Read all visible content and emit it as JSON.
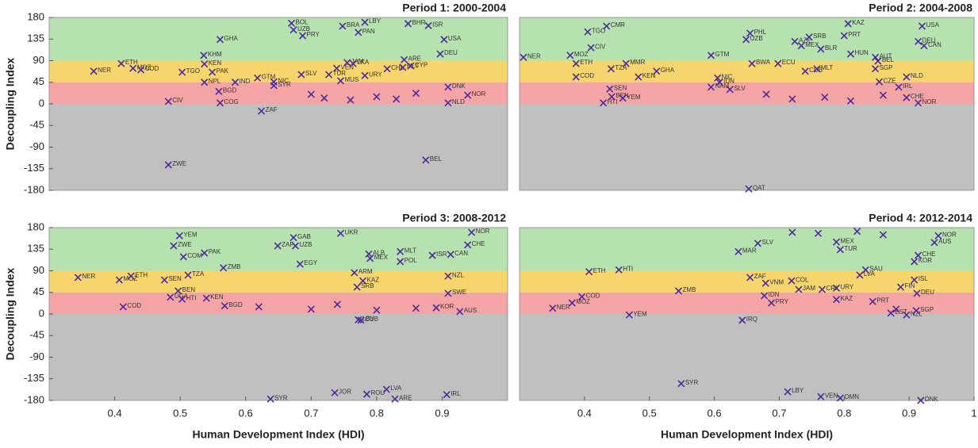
{
  "chart_data": [
    {
      "type": "scatter",
      "title": "Period 1: 2000-2004",
      "y_label": "Decoupling Index",
      "xlim": [
        0.3,
        1
      ],
      "ylim": [
        -180,
        180
      ],
      "yticks": [
        180,
        135,
        90,
        45,
        0,
        -45,
        -90,
        -135,
        -180
      ],
      "bands": [
        {
          "from": 90,
          "to": 180,
          "color": "#b5e2af"
        },
        {
          "from": 45,
          "to": 90,
          "color": "#f6d56c"
        },
        {
          "from": 0,
          "to": 45,
          "color": "#f4a4a4"
        },
        {
          "from": -180,
          "to": 0,
          "color": "#c0c0c0"
        }
      ],
      "series": [
        {
          "color": "#4b2a9c",
          "labels": [
            "ZWE",
            "BEL",
            "NER",
            "ETH",
            "MOZ",
            "COD",
            "TGO",
            "GHA",
            "KHM",
            "KEN",
            "PAK",
            "NPL",
            "IND",
            "BGD",
            "COG",
            "CIV",
            "GTM",
            "NIC",
            "SYR",
            "ZAF",
            "SLV",
            "TUR",
            "VEN",
            "JAM",
            "LKA",
            "MUS",
            "UZB",
            "PRY",
            "BOL",
            "BRA",
            "PAN",
            "LBY",
            "BHR",
            "ISR",
            "ARE",
            "MLT",
            "USA",
            "DEU",
            "CHL",
            "CYP",
            "URY",
            "DNK",
            "NOR",
            "NLD",
            null,
            null,
            null,
            null,
            null,
            null
          ],
          "x": [
            0.482,
            0.875,
            0.368,
            0.41,
            0.428,
            0.44,
            0.503,
            0.561,
            0.536,
            0.537,
            0.549,
            0.537,
            0.584,
            0.559,
            0.561,
            0.482,
            0.618,
            0.643,
            0.643,
            0.624,
            0.685,
            0.727,
            0.739,
            0.755,
            0.764,
            0.745,
            0.673,
            0.687,
            0.67,
            0.748,
            0.772,
            0.782,
            0.848,
            0.879,
            0.842,
            0.84,
            0.903,
            0.897,
            0.816,
            0.852,
            0.782,
            0.909,
            0.939,
            0.909,
            0.7,
            0.72,
            0.76,
            0.8,
            0.83,
            0.86
          ],
          "values": [
            -127,
            -117,
            68,
            84,
            74,
            71,
            66,
            134,
            101,
            83,
            66,
            45,
            45,
            26,
            2,
            5,
            54,
            46,
            38,
            -15,
            61,
            61,
            74,
            86,
            84,
            48,
            154,
            142,
            168,
            162,
            149,
            170,
            167,
            163,
            92,
            76,
            134,
            104,
            73,
            79,
            59,
            35,
            18,
            2,
            20,
            12,
            8,
            15,
            10,
            22
          ]
        }
      ]
    },
    {
      "type": "scatter",
      "title": "Period 2: 2004-2008",
      "xlim": [
        0.3,
        1
      ],
      "ylim": [
        -180,
        180
      ],
      "bands": [
        {
          "from": 90,
          "to": 180,
          "color": "#b5e2af"
        },
        {
          "from": 45,
          "to": 90,
          "color": "#f6d56c"
        },
        {
          "from": 0,
          "to": 45,
          "color": "#f4a4a4"
        },
        {
          "from": -180,
          "to": 0,
          "color": "#c0c0c0"
        }
      ],
      "series": [
        {
          "color": "#4b2a9c",
          "labels": [
            "QAT",
            "NER",
            "MOZ",
            "CIV",
            "TGO",
            "CMR",
            "ETH",
            "COD",
            "TZA",
            "MMR",
            "GHA",
            "KEN",
            "SEN",
            "BEN",
            "HTI",
            "YEM",
            "GTM",
            "PHL",
            "UZB",
            "BWA",
            "ECU",
            "NIC",
            "IDN",
            "SLV",
            "NAM",
            "CUB",
            "MLT",
            "AZE",
            "SRB",
            "MEX",
            "BLR",
            "PRT",
            "HUN",
            "SGP",
            "AUT",
            "BEL",
            "CZE",
            "NLD",
            "IRL",
            "CHE",
            "NOR",
            "USA",
            "DEU",
            "CAN",
            "KAZ",
            null,
            null,
            null,
            null,
            null
          ],
          "x": [
            0.653,
            0.306,
            0.378,
            0.41,
            0.405,
            0.434,
            0.387,
            0.387,
            0.441,
            0.464,
            0.511,
            0.483,
            0.439,
            0.442,
            0.429,
            0.459,
            0.595,
            0.655,
            0.649,
            0.658,
            0.698,
            0.605,
            0.608,
            0.624,
            0.595,
            0.74,
            0.758,
            0.724,
            0.746,
            0.734,
            0.764,
            0.8,
            0.81,
            0.848,
            0.848,
            0.852,
            0.854,
            0.896,
            0.884,
            0.896,
            0.914,
            0.92,
            0.914,
            0.923,
            0.806,
            0.68,
            0.72,
            0.77,
            0.81,
            0.86
          ],
          "values": [
            -177,
            97,
            101,
            117,
            150,
            162,
            84,
            56,
            73,
            84,
            68,
            56,
            31,
            15,
            2,
            12,
            101,
            147,
            134,
            84,
            84,
            54,
            45,
            30,
            35,
            68,
            73,
            130,
            139,
            121,
            114,
            142,
            104,
            73,
            97,
            89,
            46,
            56,
            35,
            13,
            2,
            162,
            130,
            121,
            167,
            20,
            10,
            14,
            6,
            18
          ]
        }
      ]
    },
    {
      "type": "scatter",
      "title": "Period 3: 2008-2012",
      "y_label": "Decoupling Index",
      "x_label": "Human Development Index (HDI)",
      "xlim": [
        0.3,
        1
      ],
      "ylim": [
        -180,
        180
      ],
      "yticks": [
        180,
        135,
        90,
        45,
        0,
        -45,
        -90,
        -135,
        -180
      ],
      "xticks": [
        0.4,
        0.5,
        0.6,
        0.7,
        0.8,
        0.9
      ],
      "bands": [
        {
          "from": 90,
          "to": 180,
          "color": "#b5e2af"
        },
        {
          "from": 45,
          "to": 90,
          "color": "#f6d56c"
        },
        {
          "from": 0,
          "to": 45,
          "color": "#f4a4a4"
        },
        {
          "from": -180,
          "to": 0,
          "color": "#c0c0c0"
        }
      ],
      "series": [
        {
          "color": "#4b2a9c",
          "labels": [
            "SYR",
            "JOR",
            "ROU",
            "LVA",
            "ARE",
            "IRL",
            "NER",
            "MOZ",
            "ETH",
            "YEM",
            "ZWE",
            "COM",
            "PAK",
            "SEN",
            "TZA",
            "ZMB",
            "BEN",
            "UGA",
            "HTI",
            "COD",
            "KEN",
            "BGD",
            "GAB",
            "ZAF",
            "UZB",
            "EGY",
            "ARM",
            "ALB",
            "MEX",
            "KAZ",
            "SRB",
            "UKR",
            "MLT",
            "POL",
            "ISR",
            "CAN",
            "CHE",
            "NZL",
            "SWE",
            "KOR",
            "AUS",
            "LBY",
            "CUB",
            "NOR",
            null,
            null,
            null,
            null,
            null
          ],
          "x": [
            0.638,
            0.736,
            0.785,
            0.815,
            0.828,
            0.907,
            0.344,
            0.407,
            0.425,
            0.499,
            0.49,
            0.505,
            0.537,
            0.476,
            0.512,
            0.566,
            0.497,
            0.485,
            0.503,
            0.413,
            0.54,
            0.568,
            0.673,
            0.649,
            0.676,
            0.683,
            0.766,
            0.788,
            0.79,
            0.779,
            0.77,
            0.745,
            0.836,
            0.836,
            0.885,
            0.913,
            0.939,
            0.909,
            0.909,
            0.891,
            0.927,
            0.772,
            0.776,
            0.945,
            0.62,
            0.7,
            0.74,
            0.8,
            0.86
          ],
          "values": [
            -177,
            -164,
            -167,
            -157,
            -177,
            -168,
            76,
            71,
            79,
            163,
            142,
            119,
            127,
            71,
            81,
            96,
            48,
            35,
            31,
            15,
            33,
            17,
            159,
            142,
            142,
            104,
            86,
            125,
            116,
            69,
            56,
            168,
            130,
            109,
            122,
            124,
            144,
            79,
            43,
            13,
            5,
            -12,
            -13,
            170,
            15,
            10,
            20,
            8,
            12
          ]
        }
      ]
    },
    {
      "type": "scatter",
      "title": "Period 4: 2012-2014",
      "x_label": "Human Development Index (HDI)",
      "xlim": [
        0.3,
        1
      ],
      "ylim": [
        -180,
        180
      ],
      "xticks": [
        0.4,
        0.5,
        0.6,
        0.7,
        0.8,
        0.9,
        1
      ],
      "bands": [
        {
          "from": 90,
          "to": 180,
          "color": "#b5e2af"
        },
        {
          "from": 45,
          "to": 90,
          "color": "#f6d56c"
        },
        {
          "from": 0,
          "to": 45,
          "color": "#f4a4a4"
        },
        {
          "from": -180,
          "to": 0,
          "color": "#c0c0c0"
        }
      ],
      "series": [
        {
          "color": "#4b2a9c",
          "labels": [
            "SYR",
            "LBY",
            "VEN",
            "OMN",
            "DNK",
            "NER",
            "MOZ",
            "COD",
            "ETH",
            "HTI",
            "YEM",
            "ZMB",
            "MAR",
            "SLV",
            "IRQ",
            "ZAF",
            "VNM",
            "COL",
            "JAM",
            "IDN",
            "PRY",
            "URY",
            "KAZ",
            "CRI",
            "LVA",
            "SAU",
            "TUR",
            "MEX",
            "PRT",
            "EST",
            "FIN",
            "DEU",
            "ISL",
            "KOR",
            "CHE",
            "AUS",
            "NOR",
            "NZL",
            "SGP",
            null,
            null,
            null,
            null,
            null
          ],
          "x": [
            0.549,
            0.713,
            0.764,
            0.794,
            0.918,
            0.351,
            0.381,
            0.396,
            0.407,
            0.453,
            0.469,
            0.545,
            0.637,
            0.667,
            0.643,
            0.655,
            0.679,
            0.719,
            0.73,
            0.677,
            0.688,
            0.788,
            0.788,
            0.766,
            0.824,
            0.833,
            0.794,
            0.788,
            0.844,
            0.872,
            0.887,
            0.912,
            0.908,
            0.908,
            0.914,
            0.939,
            0.945,
            0.896,
            0.911,
            0.72,
            0.76,
            0.82,
            0.86,
            0.88
          ],
          "values": [
            -145,
            -162,
            -172,
            -175,
            -180,
            12,
            23,
            36,
            88,
            92,
            -2,
            48,
            130,
            147,
            -13,
            76,
            64,
            69,
            51,
            38,
            23,
            54,
            30,
            51,
            81,
            92,
            134,
            150,
            26,
            2,
            56,
            43,
            71,
            109,
            122,
            149,
            163,
            -2,
            7,
            170,
            168,
            172,
            165,
            10
          ]
        }
      ]
    }
  ]
}
